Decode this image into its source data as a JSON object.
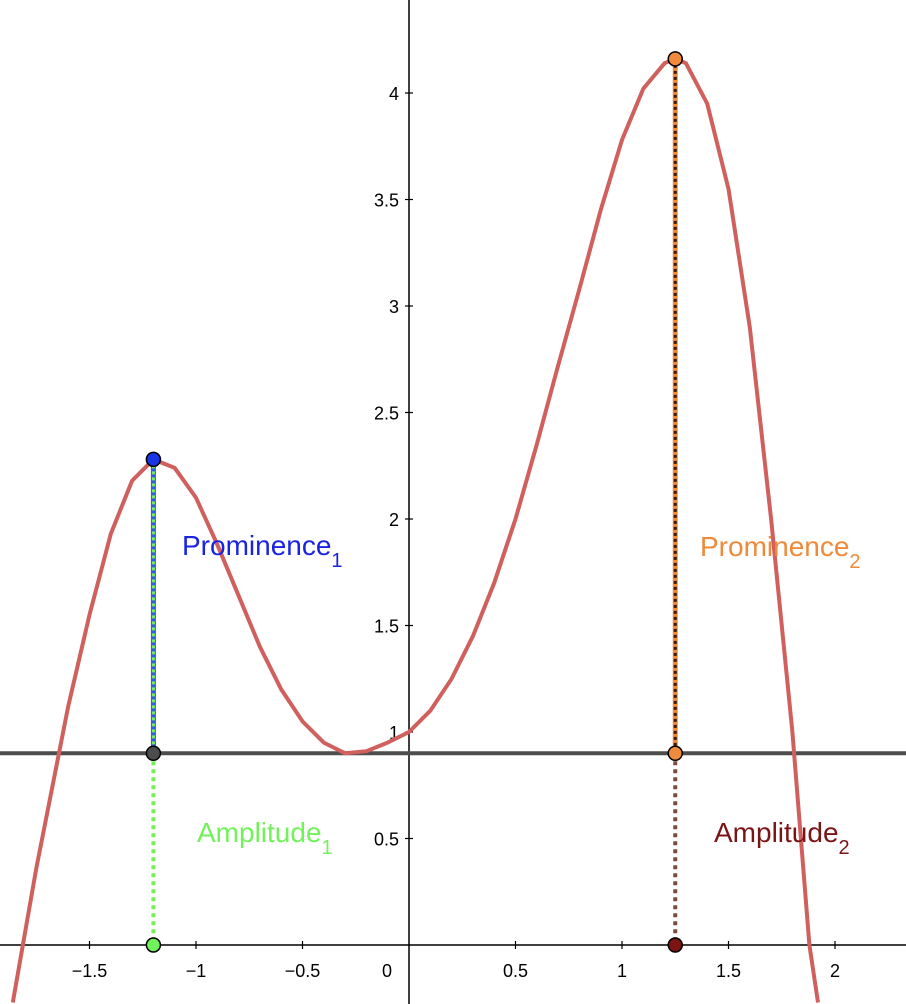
{
  "chart_data": {
    "type": "line",
    "xlim": [
      -1.92,
      2.33
    ],
    "ylim": [
      -0.27,
      4.43
    ],
    "x_ticks": [
      {
        "value": -1.5,
        "label": "−1.5"
      },
      {
        "value": -1,
        "label": "−1"
      },
      {
        "value": -0.5,
        "label": "−0.5"
      },
      {
        "value": 0,
        "label": "0"
      },
      {
        "value": 0.5,
        "label": "0.5"
      },
      {
        "value": 1,
        "label": "1"
      },
      {
        "value": 1.5,
        "label": "1.5"
      },
      {
        "value": 2,
        "label": "2"
      }
    ],
    "y_ticks": [
      {
        "value": 0.5,
        "label": "0.5"
      },
      {
        "value": 1,
        "label": "1"
      },
      {
        "value": 1.5,
        "label": "1.5"
      },
      {
        "value": 2,
        "label": "2"
      },
      {
        "value": 2.5,
        "label": "2.5"
      },
      {
        "value": 3,
        "label": "3"
      },
      {
        "value": 3.5,
        "label": "3.5"
      },
      {
        "value": 4,
        "label": "4"
      }
    ],
    "curve": {
      "color": "#d0605e",
      "points": [
        [
          -1.86,
          -0.27
        ],
        [
          -1.75,
          0.36
        ],
        [
          -1.6,
          1.12
        ],
        [
          -1.5,
          1.55
        ],
        [
          -1.4,
          1.93
        ],
        [
          -1.3,
          2.18
        ],
        [
          -1.2,
          2.28
        ],
        [
          -1.1,
          2.24
        ],
        [
          -1.0,
          2.1
        ],
        [
          -0.9,
          1.88
        ],
        [
          -0.8,
          1.64
        ],
        [
          -0.7,
          1.4
        ],
        [
          -0.6,
          1.2
        ],
        [
          -0.5,
          1.05
        ],
        [
          -0.4,
          0.95
        ],
        [
          -0.3,
          0.9
        ],
        [
          -0.2,
          0.91
        ],
        [
          -0.1,
          0.95
        ],
        [
          0.0,
          1.0
        ],
        [
          0.1,
          1.1
        ],
        [
          0.2,
          1.25
        ],
        [
          0.3,
          1.45
        ],
        [
          0.4,
          1.7
        ],
        [
          0.5,
          2.0
        ],
        [
          0.6,
          2.35
        ],
        [
          0.7,
          2.72
        ],
        [
          0.8,
          3.08
        ],
        [
          0.9,
          3.45
        ],
        [
          1.0,
          3.78
        ],
        [
          1.1,
          4.02
        ],
        [
          1.2,
          4.14
        ],
        [
          1.25,
          4.16
        ],
        [
          1.3,
          4.14
        ],
        [
          1.4,
          3.95
        ],
        [
          1.5,
          3.55
        ],
        [
          1.6,
          2.9
        ],
        [
          1.7,
          2.0
        ],
        [
          1.8,
          1.0
        ],
        [
          1.88,
          0.0
        ],
        [
          1.92,
          -0.27
        ]
      ]
    },
    "baseline": {
      "y": 0.9,
      "color": "#4d4d4d"
    },
    "peaks": [
      {
        "x": -1.2,
        "peak_y": 2.28,
        "prominence_label": "Prominence",
        "prominence_sub": "1",
        "prominence_color": "#1a24e0",
        "amplitude_label": "Amplitude",
        "amplitude_sub": "1",
        "amplitude_color": "#72f25a",
        "peak_point_color": "#1a35e6",
        "base_point_color": "#4d4d4d",
        "foot_point_color": "#72f25a",
        "line_color": "#3b57e0",
        "dash_color": "#72f25a",
        "amp_line_color": "#72f25a",
        "amp_dash_color": "#ffffff"
      },
      {
        "x": 1.25,
        "peak_y": 4.16,
        "prominence_label": "Prominence",
        "prominence_sub": "2",
        "prominence_color": "#ee8a3a",
        "amplitude_label": "Amplitude",
        "amplitude_sub": "2",
        "amplitude_color": "#7b1515",
        "peak_point_color": "#f08a3c",
        "base_point_color": "#f08a3c",
        "foot_point_color": "#7b1515",
        "line_color": "#f08a3c",
        "dash_color": "#3a1a0a",
        "amp_line_color": "#7b4a40",
        "amp_dash_color": "#ffffff"
      }
    ]
  }
}
